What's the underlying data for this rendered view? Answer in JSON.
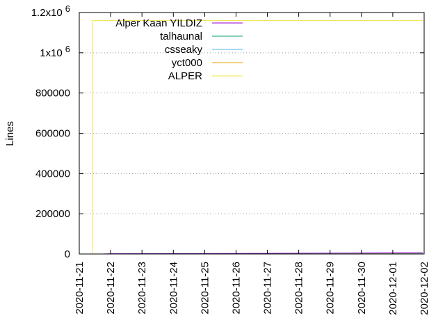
{
  "chart_data": {
    "type": "line",
    "title": "",
    "xlabel": "",
    "ylabel": "Lines",
    "x_type": "date",
    "xlim": [
      "2020-11-21",
      "2020-12-02"
    ],
    "ylim": [
      0,
      1200000
    ],
    "x_ticks": [
      "2020-11-21",
      "2020-11-22",
      "2020-11-23",
      "2020-11-24",
      "2020-11-25",
      "2020-11-26",
      "2020-11-27",
      "2020-11-28",
      "2020-11-29",
      "2020-11-30",
      "2020-12-01",
      "2020-12-02"
    ],
    "y_ticks": [
      {
        "value": 0,
        "label": "0"
      },
      {
        "value": 200000,
        "label": "200000"
      },
      {
        "value": 400000,
        "label": "400000"
      },
      {
        "value": 600000,
        "label": "600000"
      },
      {
        "value": 800000,
        "label": "800000"
      },
      {
        "value": 1000000,
        "base": "1x10",
        "exp": "6"
      },
      {
        "value": 1200000,
        "base": "1.2x10",
        "exp": "6"
      }
    ],
    "grid": true,
    "legend_position": "top-left",
    "series": [
      {
        "name": "Alper Kaan YILDIZ",
        "color": "#9400d3",
        "points": [
          [
            "2020-11-21T18:00",
            0
          ],
          [
            "2020-11-22",
            1500
          ],
          [
            "2020-11-26",
            2500
          ],
          [
            "2020-11-29",
            4000
          ],
          [
            "2020-12-01",
            6000
          ],
          [
            "2020-12-01T23:00",
            6500
          ]
        ]
      },
      {
        "name": "talhaunal",
        "color": "#009e73",
        "points": [
          [
            "2020-11-21T18:00",
            0
          ],
          [
            "2020-11-25",
            500
          ],
          [
            "2020-12-01T23:00",
            1000
          ]
        ]
      },
      {
        "name": "csseaky",
        "color": "#56b4e9",
        "points": [
          [
            "2020-11-21T18:00",
            0
          ],
          [
            "2020-12-01T23:00",
            300
          ]
        ]
      },
      {
        "name": "yct000",
        "color": "#e69f00",
        "points": [
          [
            "2020-11-21T18:00",
            0
          ],
          [
            "2020-12-01T23:00",
            200
          ]
        ]
      },
      {
        "name": "ALPER",
        "color": "#f0e442",
        "points": [
          [
            "2020-11-21T10:00",
            0
          ],
          [
            "2020-11-21T10:00",
            1160000
          ],
          [
            "2020-12-01T23:00",
            1160000
          ]
        ]
      }
    ]
  }
}
